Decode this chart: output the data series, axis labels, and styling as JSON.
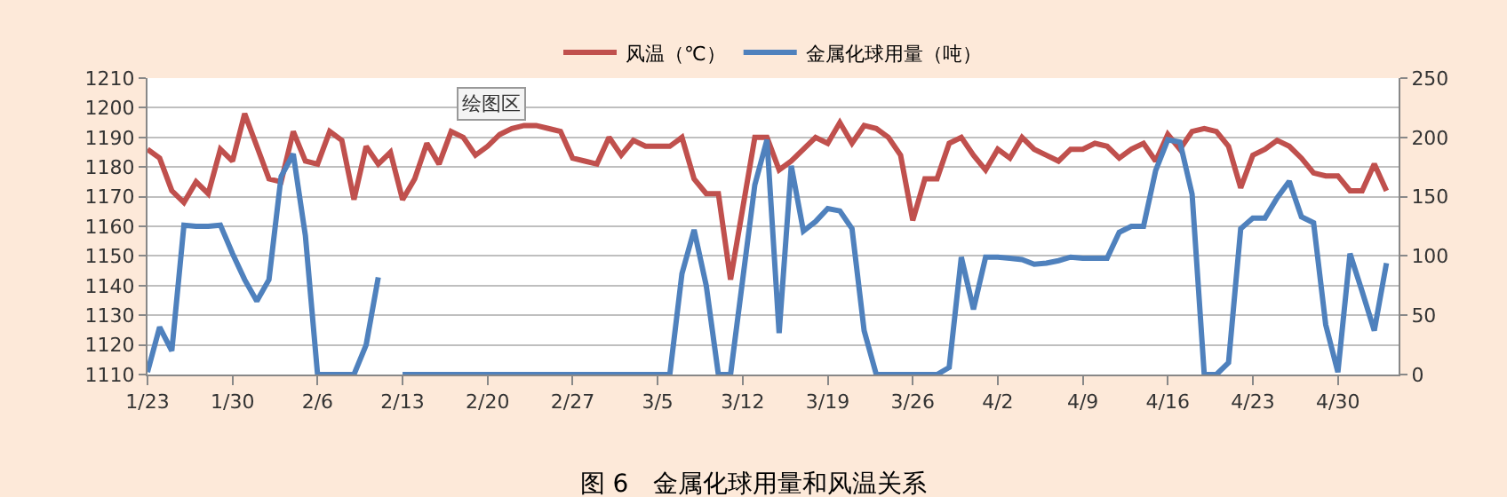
{
  "chart_data": {
    "type": "line",
    "title": "图 6　金属化球用量和风温关系",
    "annotations": [
      "绘图区"
    ],
    "x": [
      "--01-23",
      "--01-24",
      "--01-25",
      "--01-26",
      "--01-27",
      "--01-28",
      "--01-29",
      "--01-30",
      "--01-31",
      "--02-01",
      "--02-02",
      "--02-03",
      "--02-04",
      "--02-05",
      "--02-06",
      "--02-07",
      "--02-08",
      "--02-09",
      "--02-10",
      "--02-11",
      "--02-12",
      "--02-13",
      "--02-14",
      "--02-15",
      "--02-16",
      "--02-17",
      "--02-18",
      "--02-19",
      "--02-20",
      "--02-21",
      "--02-22",
      "--02-23",
      "--02-24",
      "--02-25",
      "--02-26",
      "--02-27",
      "--02-28",
      "--02-29",
      "--03-01",
      "--03-02",
      "--03-03",
      "--03-04",
      "--03-05",
      "--03-06",
      "--03-07",
      "--03-08",
      "--03-09",
      "--03-10",
      "--03-11",
      "--03-12",
      "--03-13",
      "--03-14",
      "--03-15",
      "--03-16",
      "--03-17",
      "--03-18",
      "--03-19",
      "--03-20",
      "--03-21",
      "--03-22",
      "--03-23",
      "--03-24",
      "--03-25",
      "--03-26",
      "--03-27",
      "--03-28",
      "--03-29",
      "--03-30",
      "--03-31",
      "--04-01",
      "--04-02",
      "--04-03",
      "--04-04",
      "--04-05",
      "--04-06",
      "--04-07",
      "--04-08",
      "--04-09",
      "--04-10",
      "--04-11",
      "--04-12",
      "--04-13",
      "--04-14",
      "--04-15",
      "--04-16",
      "--04-17",
      "--04-18",
      "--04-19",
      "--04-20",
      "--04-21",
      "--04-22",
      "--04-23",
      "--04-24",
      "--04-25",
      "--04-26",
      "--04-27",
      "--04-28",
      "--04-29",
      "--04-30",
      "--05-01",
      "--05-02",
      "--05-03",
      "--05-04"
    ],
    "series": [
      {
        "name": "风温（℃）",
        "color": "#c0504d",
        "values": [
          1186,
          1183,
          1172,
          1168,
          1175,
          1171,
          1186,
          1182,
          1198,
          1187,
          1176,
          1175,
          1192,
          1182,
          1181,
          1192,
          1189,
          1169,
          1187,
          1181,
          1185,
          1169,
          1176,
          1188,
          1181,
          1192,
          1190,
          1184,
          1187,
          1191,
          1193,
          1194,
          1194,
          1193,
          1192,
          1183,
          1182,
          1181,
          1190,
          1184,
          1189,
          1187,
          1187,
          1187,
          1190,
          1176,
          1171,
          1171,
          1142,
          1166,
          1190,
          1190,
          1179,
          1182,
          1186,
          1190,
          1188,
          1195,
          1188,
          1194,
          1193,
          1190,
          1184,
          1162,
          1176,
          1176,
          1188,
          1190,
          1184,
          1179,
          1186,
          1183,
          1190,
          1186,
          1184,
          1182,
          1186,
          1186,
          1188,
          1187,
          1183,
          1186,
          1188,
          1182,
          1191,
          1186,
          1192,
          1193,
          1192,
          1187,
          1173,
          1184,
          1186,
          1189,
          1187,
          1183,
          1178,
          1177,
          1177,
          1172,
          1172,
          1181,
          1172
        ]
      },
      {
        "name": "金属化球用量（吨）",
        "color": "#4f81bd",
        "axis": "y2",
        "values": [
          2,
          40,
          20,
          126,
          125,
          125,
          126,
          102,
          80,
          62,
          80,
          167,
          186,
          117,
          0,
          0,
          0,
          0,
          25,
          82,
          null,
          0,
          0,
          0,
          0,
          0,
          0,
          0,
          0,
          0,
          0,
          0,
          0,
          0,
          0,
          0,
          0,
          0,
          0,
          0,
          0,
          0,
          0,
          0,
          85,
          122,
          75,
          0,
          0,
          80,
          160,
          198,
          35,
          176,
          121,
          129,
          140,
          138,
          123,
          37,
          0,
          0,
          0,
          0,
          0,
          0,
          6,
          99,
          55,
          99,
          99,
          98,
          97,
          93,
          94,
          96,
          99,
          98,
          98,
          98,
          120,
          125,
          125,
          172,
          198,
          196,
          152,
          0,
          0,
          10,
          123,
          132,
          132,
          149,
          163,
          133,
          128,
          42,
          2,
          102,
          70,
          37,
          94
        ]
      }
    ],
    "xlim": [
      "--01-23",
      "--05-05"
    ],
    "xticks": [
      {
        "value": "--01-23",
        "label": "1/23"
      },
      {
        "value": "--01-30",
        "label": "1/30"
      },
      {
        "value": "--02-06",
        "label": "2/6"
      },
      {
        "value": "--02-13",
        "label": "2/13"
      },
      {
        "value": "--02-20",
        "label": "2/20"
      },
      {
        "value": "--02-27",
        "label": "2/27"
      },
      {
        "value": "--03-05",
        "label": "3/5"
      },
      {
        "value": "--03-12",
        "label": "3/12"
      },
      {
        "value": "--03-19",
        "label": "3/19"
      },
      {
        "value": "--03-26",
        "label": "3/26"
      },
      {
        "value": "--04-02",
        "label": "4/2"
      },
      {
        "value": "--04-09",
        "label": "4/9"
      },
      {
        "value": "--04-16",
        "label": "4/16"
      },
      {
        "value": "--04-23",
        "label": "4/23"
      },
      {
        "value": "--04-30",
        "label": "4/30"
      }
    ],
    "ylim": [
      1110,
      1210
    ],
    "yticks": [
      1110,
      1120,
      1130,
      1140,
      1150,
      1160,
      1170,
      1180,
      1190,
      1200,
      1210
    ],
    "y2lim": [
      0,
      250
    ],
    "y2ticks": [
      0,
      50,
      100,
      150,
      200,
      250
    ],
    "grid": "y",
    "legend": "top",
    "marker": "none",
    "line_style": "solid"
  }
}
